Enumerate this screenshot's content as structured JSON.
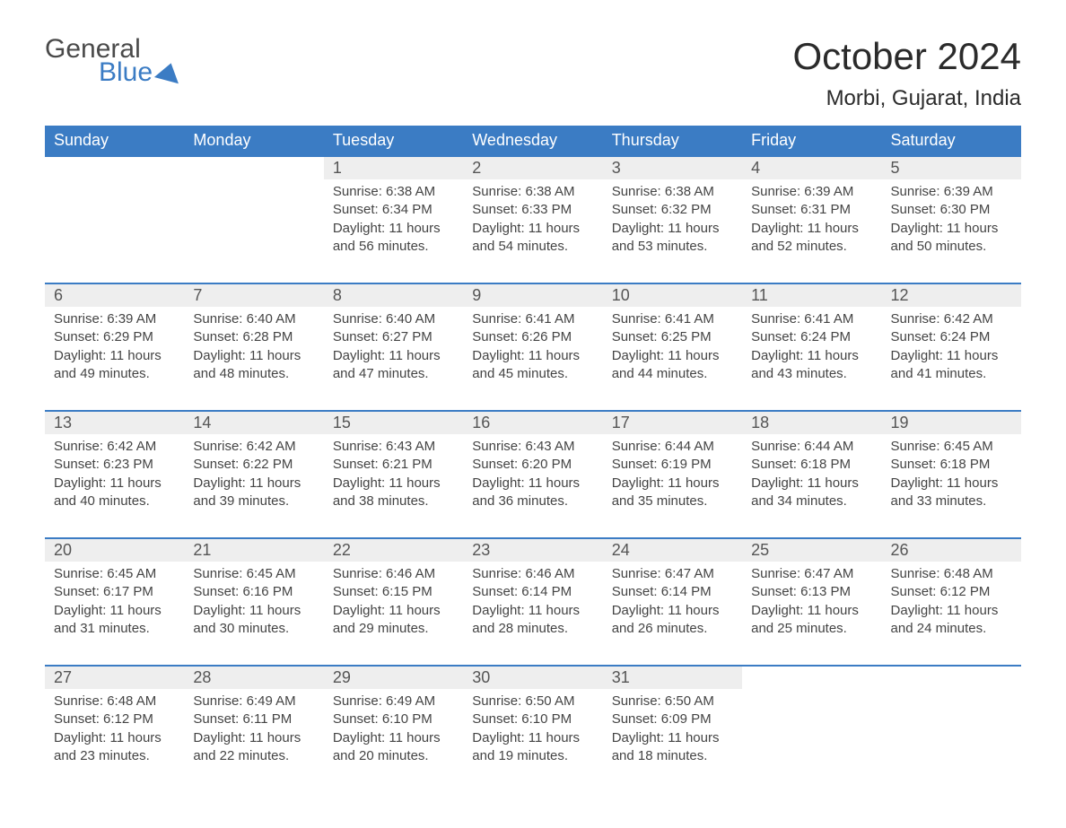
{
  "brand": {
    "top": "General",
    "bottom": "Blue"
  },
  "title": {
    "month": "October 2024",
    "location": "Morbi, Gujarat, India"
  },
  "colors": {
    "header_bg": "#3b7cc4",
    "header_text": "#ffffff",
    "daynum_bg": "#eeeeee",
    "daynum_text": "#555555",
    "body_text": "#444444",
    "page_bg": "#ffffff",
    "week_border": "#3b7cc4"
  },
  "typography": {
    "title_fontsize": 42,
    "location_fontsize": 24,
    "dayhead_fontsize": 18,
    "daynum_fontsize": 18,
    "body_fontsize": 15
  },
  "day_names": [
    "Sunday",
    "Monday",
    "Tuesday",
    "Wednesday",
    "Thursday",
    "Friday",
    "Saturday"
  ],
  "labels": {
    "sunrise": "Sunrise:",
    "sunset": "Sunset:",
    "daylight": "Daylight:"
  },
  "weeks": [
    [
      null,
      null,
      {
        "n": "1",
        "sunrise": "6:38 AM",
        "sunset": "6:34 PM",
        "daylight": "11 hours and 56 minutes."
      },
      {
        "n": "2",
        "sunrise": "6:38 AM",
        "sunset": "6:33 PM",
        "daylight": "11 hours and 54 minutes."
      },
      {
        "n": "3",
        "sunrise": "6:38 AM",
        "sunset": "6:32 PM",
        "daylight": "11 hours and 53 minutes."
      },
      {
        "n": "4",
        "sunrise": "6:39 AM",
        "sunset": "6:31 PM",
        "daylight": "11 hours and 52 minutes."
      },
      {
        "n": "5",
        "sunrise": "6:39 AM",
        "sunset": "6:30 PM",
        "daylight": "11 hours and 50 minutes."
      }
    ],
    [
      {
        "n": "6",
        "sunrise": "6:39 AM",
        "sunset": "6:29 PM",
        "daylight": "11 hours and 49 minutes."
      },
      {
        "n": "7",
        "sunrise": "6:40 AM",
        "sunset": "6:28 PM",
        "daylight": "11 hours and 48 minutes."
      },
      {
        "n": "8",
        "sunrise": "6:40 AM",
        "sunset": "6:27 PM",
        "daylight": "11 hours and 47 minutes."
      },
      {
        "n": "9",
        "sunrise": "6:41 AM",
        "sunset": "6:26 PM",
        "daylight": "11 hours and 45 minutes."
      },
      {
        "n": "10",
        "sunrise": "6:41 AM",
        "sunset": "6:25 PM",
        "daylight": "11 hours and 44 minutes."
      },
      {
        "n": "11",
        "sunrise": "6:41 AM",
        "sunset": "6:24 PM",
        "daylight": "11 hours and 43 minutes."
      },
      {
        "n": "12",
        "sunrise": "6:42 AM",
        "sunset": "6:24 PM",
        "daylight": "11 hours and 41 minutes."
      }
    ],
    [
      {
        "n": "13",
        "sunrise": "6:42 AM",
        "sunset": "6:23 PM",
        "daylight": "11 hours and 40 minutes."
      },
      {
        "n": "14",
        "sunrise": "6:42 AM",
        "sunset": "6:22 PM",
        "daylight": "11 hours and 39 minutes."
      },
      {
        "n": "15",
        "sunrise": "6:43 AM",
        "sunset": "6:21 PM",
        "daylight": "11 hours and 38 minutes."
      },
      {
        "n": "16",
        "sunrise": "6:43 AM",
        "sunset": "6:20 PM",
        "daylight": "11 hours and 36 minutes."
      },
      {
        "n": "17",
        "sunrise": "6:44 AM",
        "sunset": "6:19 PM",
        "daylight": "11 hours and 35 minutes."
      },
      {
        "n": "18",
        "sunrise": "6:44 AM",
        "sunset": "6:18 PM",
        "daylight": "11 hours and 34 minutes."
      },
      {
        "n": "19",
        "sunrise": "6:45 AM",
        "sunset": "6:18 PM",
        "daylight": "11 hours and 33 minutes."
      }
    ],
    [
      {
        "n": "20",
        "sunrise": "6:45 AM",
        "sunset": "6:17 PM",
        "daylight": "11 hours and 31 minutes."
      },
      {
        "n": "21",
        "sunrise": "6:45 AM",
        "sunset": "6:16 PM",
        "daylight": "11 hours and 30 minutes."
      },
      {
        "n": "22",
        "sunrise": "6:46 AM",
        "sunset": "6:15 PM",
        "daylight": "11 hours and 29 minutes."
      },
      {
        "n": "23",
        "sunrise": "6:46 AM",
        "sunset": "6:14 PM",
        "daylight": "11 hours and 28 minutes."
      },
      {
        "n": "24",
        "sunrise": "6:47 AM",
        "sunset": "6:14 PM",
        "daylight": "11 hours and 26 minutes."
      },
      {
        "n": "25",
        "sunrise": "6:47 AM",
        "sunset": "6:13 PM",
        "daylight": "11 hours and 25 minutes."
      },
      {
        "n": "26",
        "sunrise": "6:48 AM",
        "sunset": "6:12 PM",
        "daylight": "11 hours and 24 minutes."
      }
    ],
    [
      {
        "n": "27",
        "sunrise": "6:48 AM",
        "sunset": "6:12 PM",
        "daylight": "11 hours and 23 minutes."
      },
      {
        "n": "28",
        "sunrise": "6:49 AM",
        "sunset": "6:11 PM",
        "daylight": "11 hours and 22 minutes."
      },
      {
        "n": "29",
        "sunrise": "6:49 AM",
        "sunset": "6:10 PM",
        "daylight": "11 hours and 20 minutes."
      },
      {
        "n": "30",
        "sunrise": "6:50 AM",
        "sunset": "6:10 PM",
        "daylight": "11 hours and 19 minutes."
      },
      {
        "n": "31",
        "sunrise": "6:50 AM",
        "sunset": "6:09 PM",
        "daylight": "11 hours and 18 minutes."
      },
      null,
      null
    ]
  ]
}
